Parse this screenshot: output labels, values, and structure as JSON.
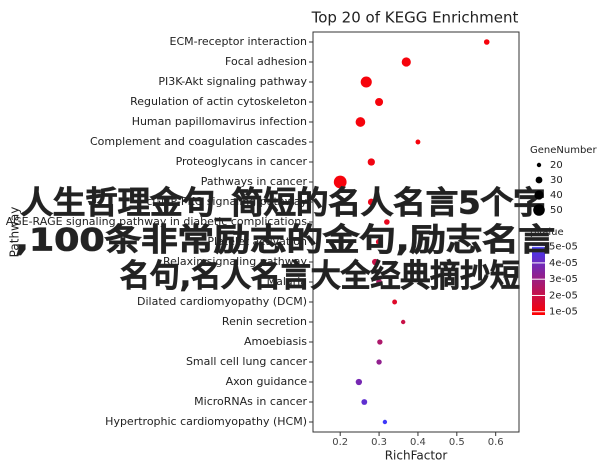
{
  "chart_data": {
    "type": "scatter",
    "title": "Top 20 of KEGG Enrichment",
    "x_label": "RichFactor",
    "y_label": "Pathway",
    "categories": [
      "ECM-receptor interaction",
      "Focal adhesion",
      "PI3K-Akt signaling pathway",
      "Regulation of actin cytoskeleton",
      "Human papillomavirus infection",
      "Complement and coagulation cascades",
      "Proteoglycans in cancer",
      "Pathways in cancer",
      "cGMP-PKG signaling pathway",
      "AGE-RAGE signaling pathway in diabetic complications",
      "Platelet activation",
      "Relaxin signaling pathway",
      "Malaria",
      "Dilated cardiomyopathy (DCM)",
      "Renin secretion",
      "Amoebiasis",
      "Small cell lung cancer",
      "Axon guidance",
      "MicroRNAs in cancer",
      "Hypertrophic cardiomyopathy (HCM)"
    ],
    "x": [
      0.577,
      0.37,
      0.267,
      0.3,
      0.252,
      0.4,
      0.28,
      0.2,
      0.28,
      0.32,
      0.3,
      0.29,
      0.3,
      0.34,
      0.362,
      0.302,
      0.3,
      0.248,
      0.262,
      0.315
    ],
    "sizes": [
      25,
      40,
      48,
      35,
      42,
      22,
      32,
      55,
      30,
      25,
      28,
      28,
      26,
      22,
      20,
      24,
      24,
      28,
      26,
      20
    ],
    "pvalues": [
      1e-05,
      1e-05,
      1e-05,
      1e-05,
      1e-05,
      1e-05,
      1.1e-05,
      1e-05,
      1.2e-05,
      1.3e-05,
      1.5e-05,
      2e-05,
      2.5e-05,
      1.5e-05,
      2e-05,
      2.6e-05,
      3.2e-05,
      3.8e-05,
      4.3e-05,
      5e-05
    ],
    "xlim": [
      0.13,
      0.66
    ],
    "xticks": [
      0.2,
      0.3,
      0.4,
      0.5,
      0.6
    ],
    "size_legend_title": "GeneNumber",
    "size_legend": [
      20,
      30,
      40,
      50
    ],
    "sizelim": [
      10,
      60
    ],
    "color_legend_title": "pvalue",
    "clim": [
      8e-06,
      5.1e-05
    ],
    "cticks": [
      {
        "value": 1e-05,
        "label": "1e-05"
      },
      {
        "value": 2e-05,
        "label": "2e-05"
      },
      {
        "value": 3e-05,
        "label": "3e-05"
      },
      {
        "value": 4e-05,
        "label": "4e-05"
      },
      {
        "value": 5e-05,
        "label": "5e-05"
      }
    ],
    "color_low": "#ff0000",
    "color_high": "#3a3aff"
  },
  "overlay": {
    "lines": [
      "人生哲理金句_简短的名人名言5个字",
      ",100条非常励志的金句,励志名言",
      "名句,名人名言大全经典摘抄短"
    ],
    "color": "#ee22ee"
  }
}
